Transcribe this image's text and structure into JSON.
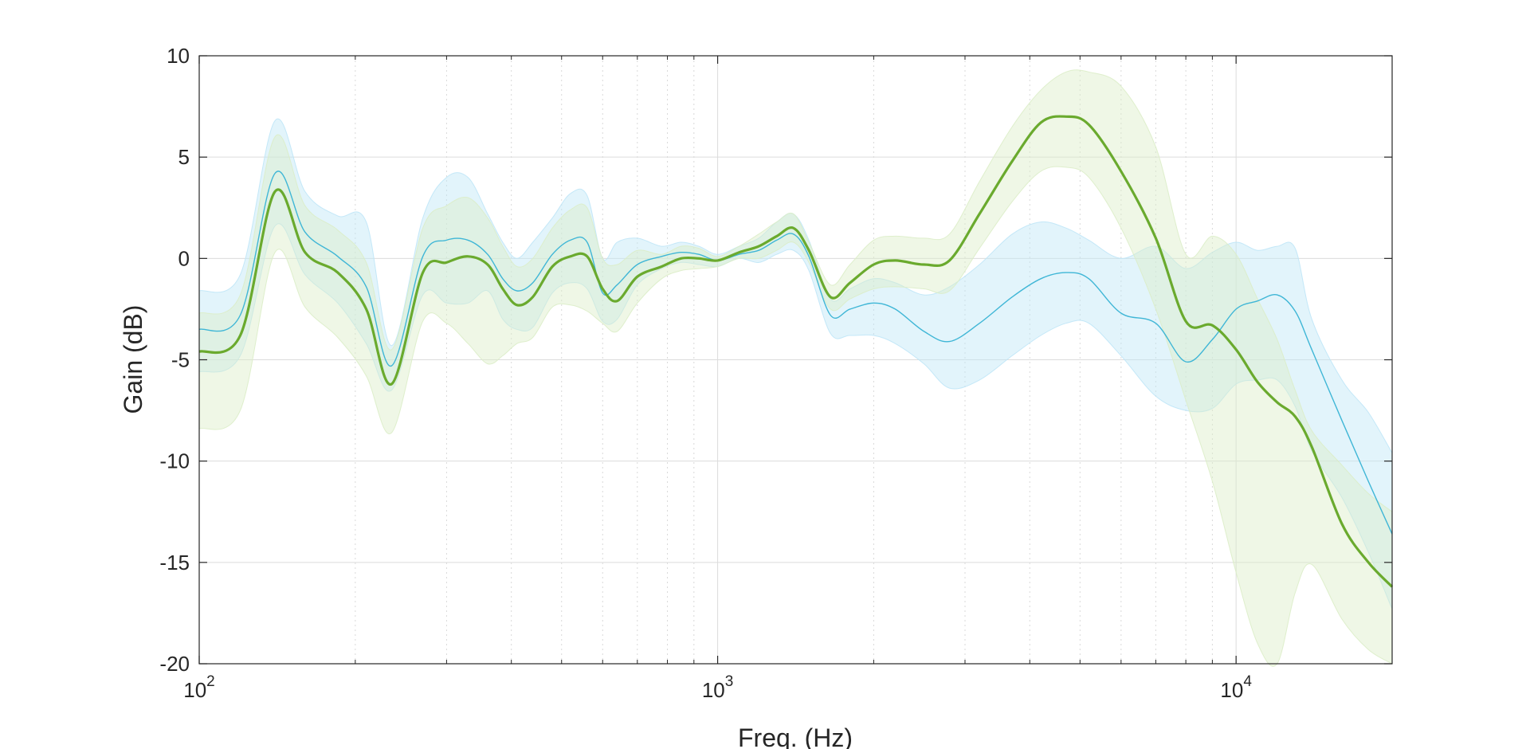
{
  "chart_data": {
    "type": "line",
    "title": "",
    "xlabel": "Freq. (Hz)",
    "ylabel": "Gain (dB)",
    "xscale": "log",
    "xlim": [
      100,
      20000
    ],
    "ylim": [
      -20,
      10
    ],
    "grid": true,
    "legend": "none",
    "x_ticks": [
      {
        "value": 100,
        "base": "10",
        "exp": "2"
      },
      {
        "value": 1000,
        "base": "10",
        "exp": "3"
      },
      {
        "value": 10000,
        "base": "10",
        "exp": "4"
      }
    ],
    "y_ticks": [
      {
        "value": 10,
        "label": "10"
      },
      {
        "value": 5,
        "label": "5"
      },
      {
        "value": 0,
        "label": "0"
      },
      {
        "value": -5,
        "label": "-5"
      },
      {
        "value": -10,
        "label": "-10"
      },
      {
        "value": -15,
        "label": "-15"
      },
      {
        "value": -20,
        "label": "-20"
      }
    ],
    "series": [
      {
        "color": "#3fb6d6",
        "band_color": "#bfe6f7",
        "x": [
          100,
          120,
          140,
          160,
          185,
          210,
          235,
          270,
          300,
          330,
          360,
          385,
          410,
          440,
          480,
          520,
          560,
          600,
          640,
          700,
          780,
          850,
          920,
          1000,
          1100,
          1200,
          1300,
          1400,
          1500,
          1650,
          1800,
          2000,
          2200,
          2500,
          2800,
          3200,
          3700,
          4200,
          4700,
          5200,
          6000,
          7000,
          8000,
          9000,
          10000,
          11000,
          12000,
          13000,
          14000,
          16000,
          18000,
          20000
        ],
        "y": [
          -3.5,
          -2.8,
          4.2,
          1.3,
          0.1,
          -1.4,
          -5.3,
          0.1,
          0.9,
          0.9,
          0.2,
          -1.0,
          -1.6,
          -1.2,
          0.2,
          0.9,
          0.8,
          -1.7,
          -1.3,
          -0.3,
          0.1,
          0.3,
          0.2,
          -0.1,
          0.2,
          0.4,
          0.9,
          1.2,
          0.1,
          -2.8,
          -2.5,
          -2.2,
          -2.5,
          -3.6,
          -4.1,
          -3.2,
          -1.9,
          -1.0,
          -0.7,
          -1.0,
          -2.7,
          -3.2,
          -5.1,
          -4.0,
          -2.5,
          -2.1,
          -1.8,
          -2.6,
          -4.5,
          -8.0,
          -11.0,
          -13.6
        ],
        "upper": [
          -1.6,
          -0.8,
          6.8,
          3.3,
          2.1,
          1.8,
          -4.3,
          2.0,
          4.0,
          4.0,
          2.2,
          0.8,
          0.0,
          0.8,
          2.0,
          3.2,
          3.1,
          0.0,
          0.8,
          1.0,
          0.6,
          0.8,
          0.6,
          0.2,
          0.6,
          1.0,
          1.8,
          2.2,
          0.9,
          -2.0,
          -1.5,
          -1.0,
          -1.2,
          -1.8,
          -1.4,
          -0.3,
          1.2,
          1.8,
          1.5,
          0.9,
          0.0,
          0.6,
          -0.5,
          0.3,
          0.8,
          0.4,
          0.6,
          0.5,
          -3.0,
          -6.0,
          -7.6,
          -9.6
        ],
        "lower": [
          -5.6,
          -4.8,
          1.6,
          -0.8,
          -2.2,
          -4.2,
          -6.5,
          -1.8,
          -2.2,
          -2.2,
          -1.6,
          -3.0,
          -3.5,
          -3.4,
          -1.7,
          -1.2,
          -1.5,
          -3.1,
          -3.0,
          -1.3,
          -0.5,
          -0.2,
          -0.3,
          -0.4,
          0.0,
          -0.2,
          0.2,
          0.4,
          -0.6,
          -3.7,
          -3.8,
          -3.8,
          -4.2,
          -5.2,
          -6.4,
          -6.0,
          -4.8,
          -3.8,
          -3.2,
          -3.2,
          -4.8,
          -6.8,
          -7.5,
          -7.4,
          -6.2,
          -6.0,
          -6.0,
          -7.3,
          -9.5,
          -11.8,
          -14.5,
          -17.3
        ]
      },
      {
        "color": "#6aaa2e",
        "band_color": "#dcedc8",
        "x": [
          100,
          120,
          140,
          160,
          185,
          210,
          235,
          270,
          300,
          330,
          360,
          385,
          410,
          440,
          480,
          520,
          560,
          600,
          640,
          700,
          780,
          850,
          920,
          1000,
          1100,
          1200,
          1300,
          1400,
          1500,
          1650,
          1800,
          2000,
          2200,
          2500,
          2800,
          3200,
          3700,
          4200,
          4700,
          5200,
          6000,
          7000,
          8000,
          9000,
          10000,
          11000,
          12000,
          13000,
          14000,
          16000,
          18000,
          20000
        ],
        "y": [
          -4.6,
          -3.8,
          3.3,
          0.3,
          -0.7,
          -2.5,
          -6.2,
          -0.7,
          -0.2,
          0.1,
          -0.3,
          -1.5,
          -2.3,
          -1.9,
          -0.4,
          0.1,
          0.1,
          -1.5,
          -2.1,
          -0.9,
          -0.4,
          0.0,
          0.0,
          -0.1,
          0.3,
          0.6,
          1.1,
          1.5,
          0.4,
          -1.9,
          -1.2,
          -0.3,
          -0.1,
          -0.3,
          -0.1,
          2.2,
          4.8,
          6.7,
          7.0,
          6.6,
          4.3,
          1.0,
          -3.1,
          -3.3,
          -4.5,
          -6.1,
          -7.1,
          -7.8,
          -9.3,
          -13.1,
          -15.0,
          -16.2
        ],
        "upper": [
          -2.7,
          -1.8,
          6.0,
          2.6,
          1.4,
          -0.2,
          -4.5,
          1.5,
          2.6,
          3.0,
          2.0,
          0.6,
          -0.4,
          0.0,
          1.5,
          2.4,
          2.5,
          0.0,
          -0.3,
          0.4,
          0.2,
          0.6,
          0.5,
          0.1,
          0.6,
          1.2,
          1.8,
          2.2,
          0.8,
          -1.3,
          -0.3,
          0.9,
          1.1,
          1.0,
          1.2,
          3.8,
          6.5,
          8.3,
          9.2,
          9.2,
          8.5,
          5.5,
          0.2,
          1.1,
          0.2,
          -2.0,
          -4.0,
          -6.5,
          -8.5,
          -10.2,
          -11.6,
          -12.5
        ],
        "lower": [
          -8.4,
          -7.5,
          0.3,
          -2.4,
          -3.9,
          -5.8,
          -8.6,
          -3.1,
          -3.2,
          -4.2,
          -5.2,
          -4.8,
          -4.2,
          -3.9,
          -2.4,
          -2.3,
          -2.6,
          -3.2,
          -3.6,
          -2.2,
          -1.0,
          -0.6,
          -0.5,
          -0.4,
          0.0,
          0.0,
          0.4,
          0.8,
          -0.2,
          -2.5,
          -2.0,
          -1.5,
          -1.4,
          -1.5,
          -1.6,
          0.5,
          2.8,
          4.3,
          4.5,
          4.0,
          1.5,
          -2.5,
          -7.0,
          -11.0,
          -15.5,
          -19.0,
          -20.0,
          -16.5,
          -15.1,
          -17.8,
          -19.3,
          -20.0
        ]
      }
    ]
  }
}
